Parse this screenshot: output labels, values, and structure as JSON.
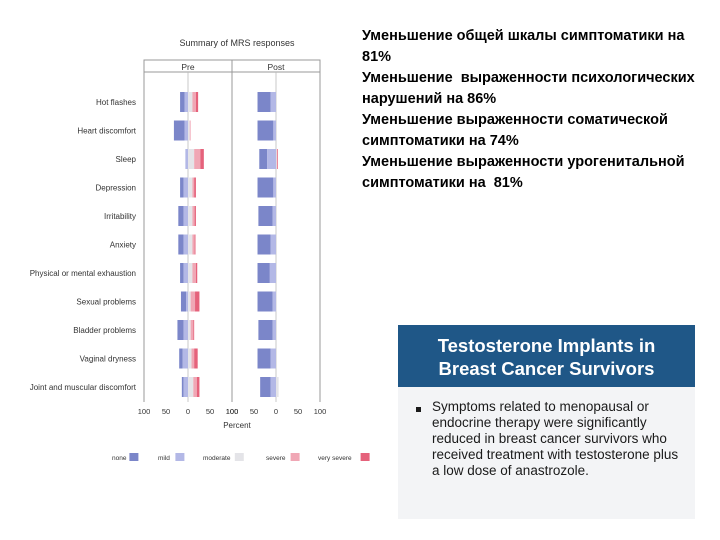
{
  "chart_data": {
    "type": "bar",
    "title": "Summary of MRS responses",
    "panels": [
      "Pre",
      "Post"
    ],
    "xlabel": "Percent",
    "ticks": [
      "100",
      "50",
      "0",
      "50",
      "100"
    ],
    "categories": [
      "Hot flashes",
      "Heart discomfort",
      "Sleep",
      "Depression",
      "Irritability",
      "Anxiety",
      "Physical or mental exhaustion",
      "Sexual problems",
      "Bladder problems",
      "Vaginal dryness",
      "Joint and muscular discomfort"
    ],
    "legend": [
      {
        "label": "none",
        "color": "#7b86c9"
      },
      {
        "label": "mild",
        "color": "#b3b8e6"
      },
      {
        "label": "moderate",
        "color": "#e4e4e8"
      },
      {
        "label": "severe",
        "color": "#f0a7b5"
      },
      {
        "label": "very severe",
        "color": "#e5627b"
      }
    ],
    "pre": [
      {
        "none": 10,
        "mild": 8,
        "moderate": 10,
        "severe": 8,
        "very_severe": 5
      },
      {
        "none": 24,
        "mild": 8,
        "moderate": 4,
        "severe": 2,
        "very_severe": 0
      },
      {
        "none": 0,
        "mild": 6,
        "moderate": 14,
        "severe": 14,
        "very_severe": 8
      },
      {
        "none": 8,
        "mild": 10,
        "moderate": 10,
        "severe": 4,
        "very_severe": 4
      },
      {
        "none": 12,
        "mild": 10,
        "moderate": 10,
        "severe": 5,
        "very_severe": 3
      },
      {
        "none": 12,
        "mild": 10,
        "moderate": 10,
        "severe": 5,
        "very_severe": 2
      },
      {
        "none": 8,
        "mild": 10,
        "moderate": 10,
        "severe": 8,
        "very_severe": 3
      },
      {
        "none": 12,
        "mild": 4,
        "moderate": 6,
        "severe": 10,
        "very_severe": 10
      },
      {
        "none": 14,
        "mild": 10,
        "moderate": 6,
        "severe": 6,
        "very_severe": 2
      },
      {
        "none": 8,
        "mild": 12,
        "moderate": 8,
        "severe": 6,
        "very_severe": 8
      },
      {
        "none": 4,
        "mild": 10,
        "moderate": 12,
        "severe": 8,
        "very_severe": 6
      }
    ],
    "post": [
      {
        "none": 30,
        "mild": 12,
        "moderate": 0,
        "severe": 0,
        "very_severe": 0
      },
      {
        "none": 36,
        "mild": 6,
        "moderate": 0,
        "severe": 0,
        "very_severe": 0
      },
      {
        "none": 18,
        "mild": 20,
        "moderate": 2,
        "severe": 0,
        "very_severe": 2
      },
      {
        "none": 36,
        "mild": 6,
        "moderate": 0,
        "severe": 0,
        "very_severe": 0
      },
      {
        "none": 32,
        "mild": 8,
        "moderate": 0,
        "severe": 0,
        "very_severe": 0
      },
      {
        "none": 30,
        "mild": 12,
        "moderate": 0,
        "severe": 0,
        "very_severe": 0
      },
      {
        "none": 28,
        "mild": 14,
        "moderate": 0,
        "severe": 0,
        "very_severe": 0
      },
      {
        "none": 34,
        "mild": 8,
        "moderate": 2,
        "severe": 0,
        "very_severe": 0
      },
      {
        "none": 32,
        "mild": 8,
        "moderate": 0,
        "severe": 0,
        "very_severe": 0
      },
      {
        "none": 30,
        "mild": 12,
        "moderate": 0,
        "severe": 0,
        "very_severe": 0
      },
      {
        "none": 24,
        "mild": 12,
        "moderate": 6,
        "severe": 0,
        "very_severe": 0
      }
    ]
  },
  "summary_lines": [
    "Уменьшение общей шкалы симптоматики на  81%",
    "Уменьшение  выраженности психологических нарушений на 86%",
    "Уменьшение выраженности соматической симптоматики на 74%",
    "Уменьшение выраженности урогенитальной симптоматики на  81%"
  ],
  "card": {
    "title_line1": "Testosterone Implants in",
    "title_line2": "Breast Cancer Survivors",
    "bullet": "Symptoms related to menopausal or endocrine therapy were significantly reduced in breast cancer survivors who received treatment with testosterone plus a low dose of anastrozole."
  }
}
